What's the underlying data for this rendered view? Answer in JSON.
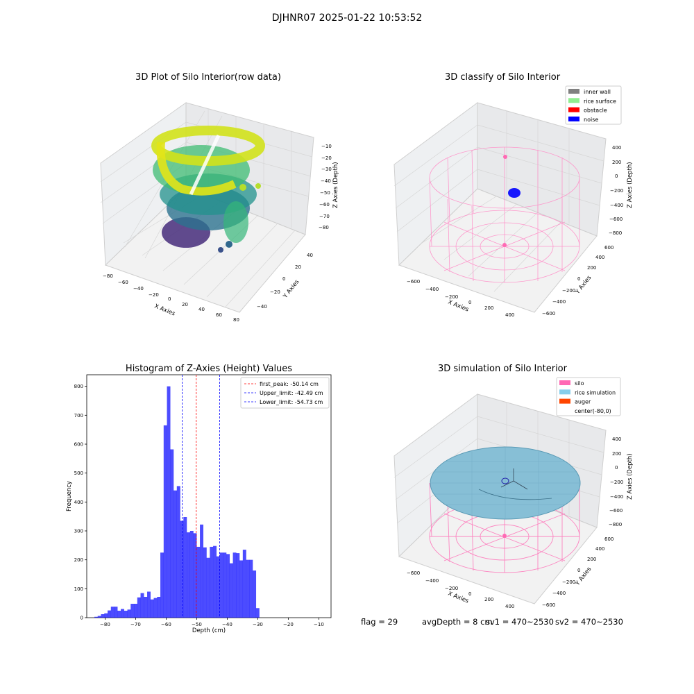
{
  "suptitle": "DJHNR07 2025-01-22 10:53:52",
  "panels": {
    "raw": {
      "title": "3D Plot of Silo Interior(row data)",
      "xlabel": "X Axies",
      "ylabel": "Y Axies",
      "zlabel": "Z Axies (Depth)",
      "xticks": [
        "−80",
        "−60",
        "−40",
        "−20",
        "0",
        "20",
        "40",
        "60",
        "80"
      ],
      "yticks": [
        "−40",
        "−20",
        "0",
        "20",
        "40"
      ],
      "zticks": [
        "−10",
        "−20",
        "−30",
        "−40",
        "−50",
        "−60",
        "−70",
        "−80"
      ]
    },
    "classify": {
      "title": "3D classify of Silo Interior",
      "xlabel": "X Axies",
      "ylabel": "Y Axies",
      "zlabel": "Z Axies (Depth)",
      "xticks": [
        "−600",
        "−400",
        "−200",
        "0",
        "200",
        "400"
      ],
      "yticks": [
        "−600",
        "−400",
        "−200",
        "0",
        "200",
        "400",
        "600"
      ],
      "zticks": [
        "400",
        "200",
        "0",
        "−200",
        "−400",
        "−600",
        "−800"
      ],
      "legend": [
        {
          "label": "inner wall",
          "color": "#808080"
        },
        {
          "label": "rice surface",
          "color": "#90ee90"
        },
        {
          "label": "obstacle",
          "color": "#ff0000"
        },
        {
          "label": "noise",
          "color": "#0000ff"
        }
      ]
    },
    "simulation": {
      "title": "3D simulation of Silo Interior",
      "xlabel": "X Axies",
      "ylabel": "Y Axies",
      "zlabel": "Z Axies (Depth)",
      "xticks": [
        "−600",
        "−400",
        "−200",
        "0",
        "200",
        "400"
      ],
      "yticks": [
        "−600",
        "−400",
        "−200",
        "0",
        "200",
        "400",
        "600"
      ],
      "zticks": [
        "400",
        "200",
        "0",
        "−200",
        "−400",
        "−600",
        "−800"
      ],
      "legend": [
        {
          "label": "silo",
          "color": "#ff69b4"
        },
        {
          "label": "rice simulation",
          "color": "#87ceeb"
        },
        {
          "label": "auger",
          "color": "#ff4500"
        },
        {
          "label": "center(-80,0)",
          "color": "#ffffff"
        }
      ]
    }
  },
  "chart_data": {
    "type": "bar",
    "title": "Histogram of Z-Axies (Height) Values",
    "xlabel": "Depth (cm)",
    "ylabel": "Frequency",
    "xlim": [
      -86,
      -6
    ],
    "ylim": [
      0,
      840
    ],
    "bin_start": -83.5,
    "bin_width": 1.08,
    "xticks": [
      -80,
      -70,
      -60,
      -50,
      -40,
      -30,
      -20,
      -10
    ],
    "yticks": [
      0,
      100,
      200,
      300,
      400,
      500,
      600,
      700,
      800
    ],
    "values": [
      3,
      6,
      12,
      15,
      25,
      38,
      38,
      24,
      30,
      24,
      28,
      48,
      48,
      70,
      85,
      72,
      90,
      63,
      68,
      72,
      225,
      665,
      800,
      582,
      440,
      455,
      335,
      348,
      295,
      300,
      292,
      245,
      322,
      243,
      207,
      245,
      248,
      212,
      225,
      225,
      220,
      188,
      225,
      223,
      198,
      235,
      200,
      200,
      163,
      33
    ],
    "color": "#0000ff",
    "lines": [
      {
        "label": "first_peak: -50.14 cm",
        "x": -50.14,
        "color": "#ff0000"
      },
      {
        "label": "Upper_limit: -42.49 cm",
        "x": -42.49,
        "color": "#0000ff"
      },
      {
        "label": "Lower_limit: -54.73 cm",
        "x": -54.73,
        "color": "#0000ff"
      }
    ],
    "legend_position": "top-right"
  },
  "status": {
    "flag": "flag = 29",
    "avg": "avgDepth = 8 cm",
    "sv1": "sv1 = 470~2530",
    "sv2": "sv2 = 470~2530"
  }
}
